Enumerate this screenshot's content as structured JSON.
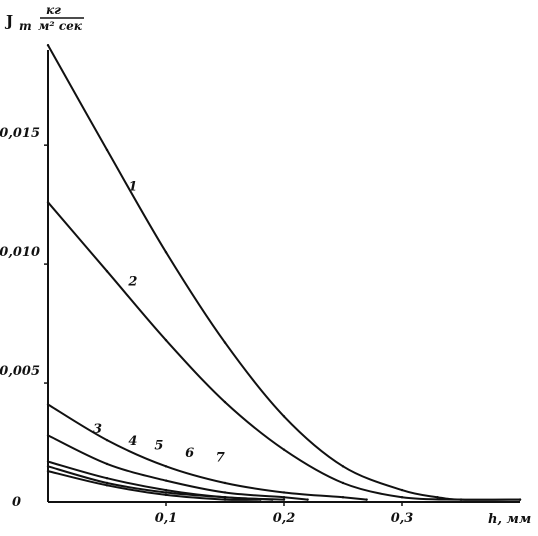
{
  "chart_data": {
    "type": "line",
    "title": "",
    "ylabel": "J",
    "ylabel_sub": "т",
    "yunit_num": "кг",
    "yunit_den": "м² сек",
    "xlabel": "h, мм",
    "xlim": [
      0,
      0.4
    ],
    "ylim": [
      0,
      0.019
    ],
    "grid": false,
    "x_ticks": [
      {
        "value": 0.1,
        "label": "0,1"
      },
      {
        "value": 0.2,
        "label": "0,2"
      },
      {
        "value": 0.3,
        "label": "0,3"
      }
    ],
    "y_ticks": [
      {
        "value": 0,
        "label": "0"
      },
      {
        "value": 0.005,
        "label": "0,005"
      },
      {
        "value": 0.01,
        "label": "0,010"
      },
      {
        "value": 0.015,
        "label": "0,015"
      }
    ],
    "series": [
      {
        "name": "1",
        "label_at": [
          0.072,
          0.0131
        ],
        "x": [
          0,
          0.05,
          0.1,
          0.15,
          0.2,
          0.25,
          0.3,
          0.33,
          0.35,
          0.4
        ],
        "y": [
          0.0192,
          0.0148,
          0.0105,
          0.0067,
          0.0036,
          0.0015,
          0.0005,
          0.0002,
          0.0001,
          0.0001
        ]
      },
      {
        "name": "2",
        "label_at": [
          0.072,
          0.0091
        ],
        "x": [
          0,
          0.05,
          0.1,
          0.15,
          0.2,
          0.25,
          0.3,
          0.35,
          0.4
        ],
        "y": [
          0.0126,
          0.0097,
          0.0068,
          0.0042,
          0.0022,
          0.0008,
          0.0002,
          0.0001,
          0.0001
        ]
      },
      {
        "name": "3",
        "label_at": [
          0.042,
          0.0029
        ],
        "x": [
          0,
          0.05,
          0.1,
          0.15,
          0.2,
          0.25,
          0.27
        ],
        "y": [
          0.0041,
          0.0026,
          0.0015,
          0.0008,
          0.0004,
          0.0002,
          0.0001
        ]
      },
      {
        "name": "4",
        "label_at": [
          0.072,
          0.0024
        ],
        "x": [
          0,
          0.05,
          0.1,
          0.15,
          0.2,
          0.22
        ],
        "y": [
          0.0028,
          0.0016,
          0.0009,
          0.0004,
          0.0002,
          0.0001
        ]
      },
      {
        "name": "5",
        "label_at": [
          0.094,
          0.0022
        ],
        "x": [
          0,
          0.05,
          0.1,
          0.15,
          0.2
        ],
        "y": [
          0.0017,
          0.001,
          0.0005,
          0.0002,
          0.0001
        ]
      },
      {
        "name": "6",
        "label_at": [
          0.12,
          0.0019
        ],
        "x": [
          0,
          0.05,
          0.1,
          0.15,
          0.19
        ],
        "y": [
          0.0015,
          0.0008,
          0.0004,
          0.0002,
          0.0001
        ]
      },
      {
        "name": "7",
        "label_at": [
          0.146,
          0.0017
        ],
        "x": [
          0,
          0.05,
          0.1,
          0.15,
          0.18
        ],
        "y": [
          0.0013,
          0.0007,
          0.0003,
          0.0001,
          0.0001
        ]
      }
    ]
  }
}
